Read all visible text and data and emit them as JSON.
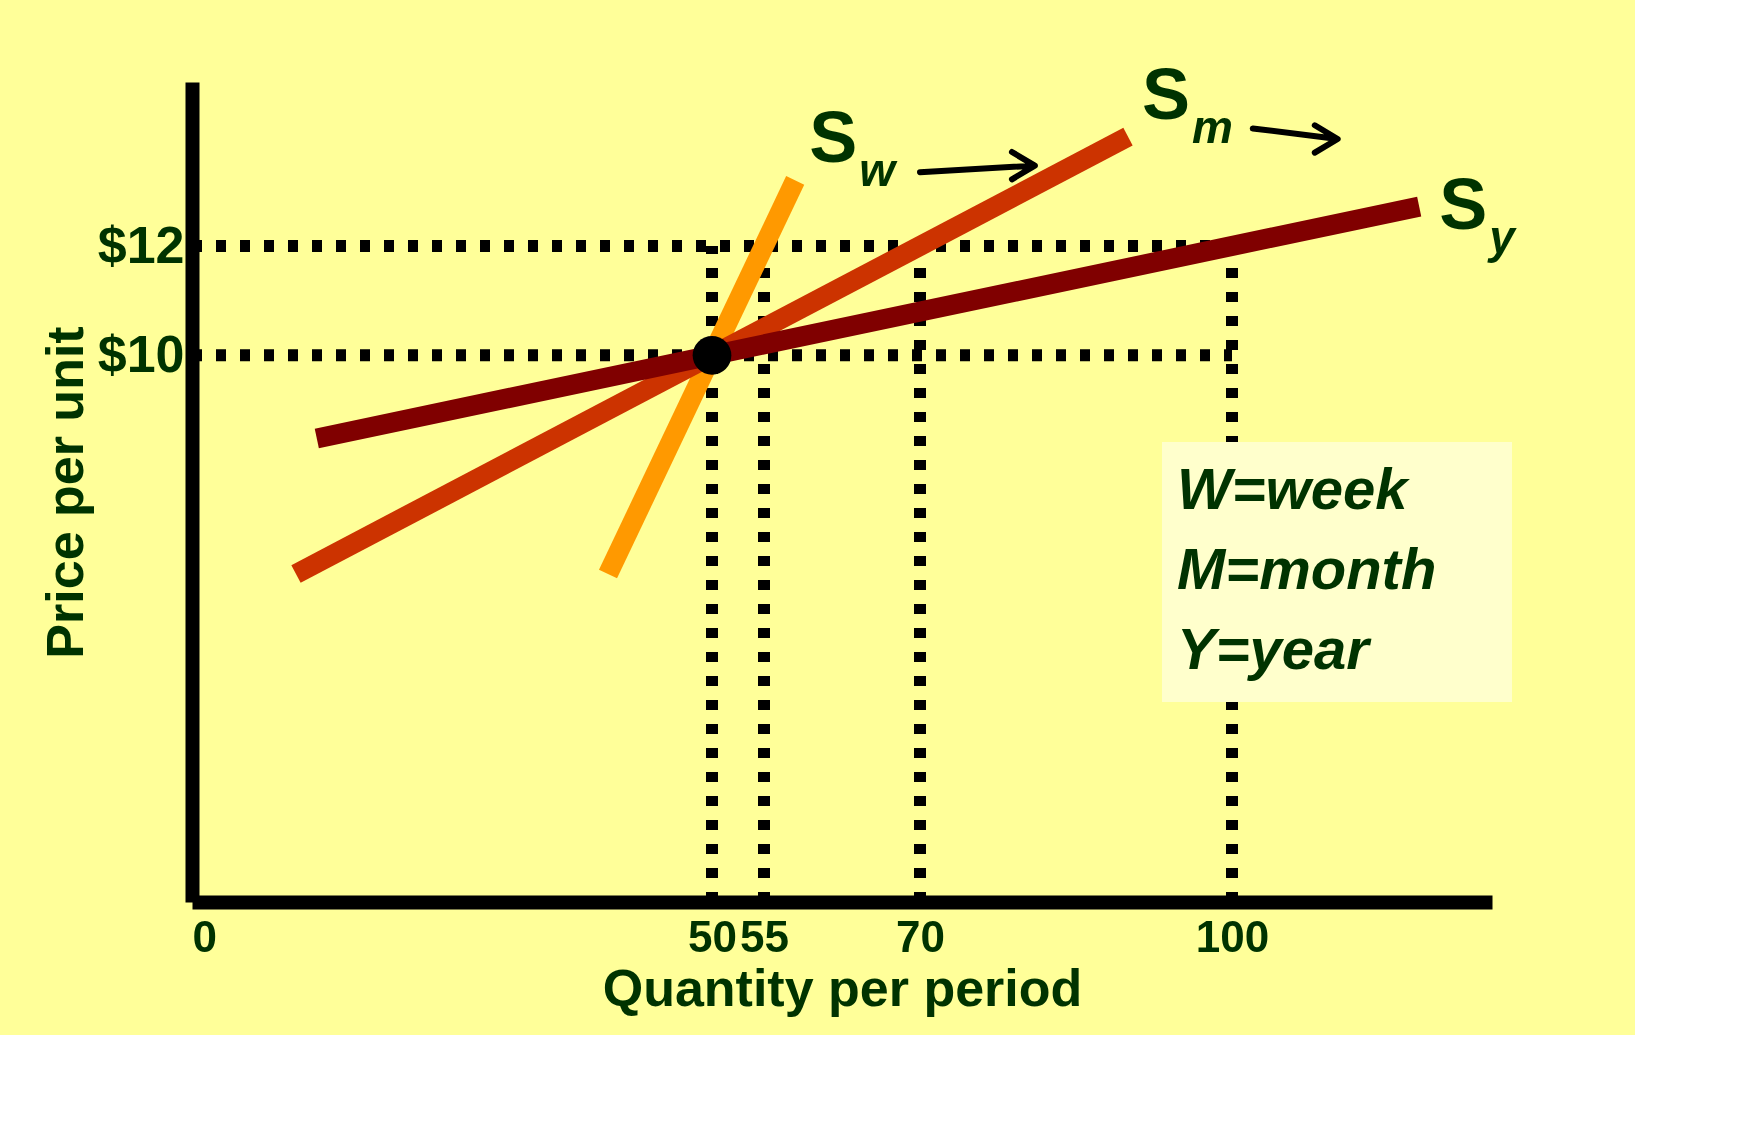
{
  "chart_data": {
    "type": "line",
    "xlabel": "Quantity per period",
    "ylabel": "Price per unit",
    "xlim": [
      0,
      125
    ],
    "ylim": [
      0,
      15
    ],
    "xticks": [
      0,
      50,
      55,
      70,
      100
    ],
    "yticks": [
      {
        "value": 10,
        "label": "$10"
      },
      {
        "value": 12,
        "label": "$12"
      }
    ],
    "grid": false,
    "series": [
      {
        "name": "S$_{w}$",
        "color": "#ff9900",
        "x": [
          40,
          58
        ],
        "values": [
          6,
          13.2
        ]
      },
      {
        "name": "S$_{m}$",
        "color": "#cc3300",
        "x": [
          10,
          90
        ],
        "values": [
          6,
          14
        ]
      },
      {
        "name": "S$_{y}$",
        "color": "#800000",
        "x": [
          12,
          118
        ],
        "values": [
          8.48,
          12.72
        ]
      },
      {
        "type": "scatter",
        "color": "#000000",
        "marker": "circle",
        "x": [
          50
        ],
        "values": [
          10
        ]
      }
    ],
    "ref_lines": [
      {
        "axis": "y",
        "value": 10,
        "color": "#000000",
        "line_style": "dotted"
      },
      {
        "axis": "y",
        "value": 12,
        "color": "#000000",
        "line_style": "dotted"
      },
      {
        "axis": "x",
        "value": 50,
        "color": "#000000",
        "line_style": "dotted"
      },
      {
        "axis": "x",
        "value": 55,
        "color": "#000000",
        "line_style": "dotted"
      },
      {
        "axis": "x",
        "value": 70,
        "color": "#000000",
        "line_style": "dotted"
      },
      {
        "axis": "x",
        "value": 100,
        "color": "#000000",
        "line_style": "dotted"
      }
    ],
    "annotations": [
      "W=week",
      "M=month",
      "Y=year"
    ]
  }
}
